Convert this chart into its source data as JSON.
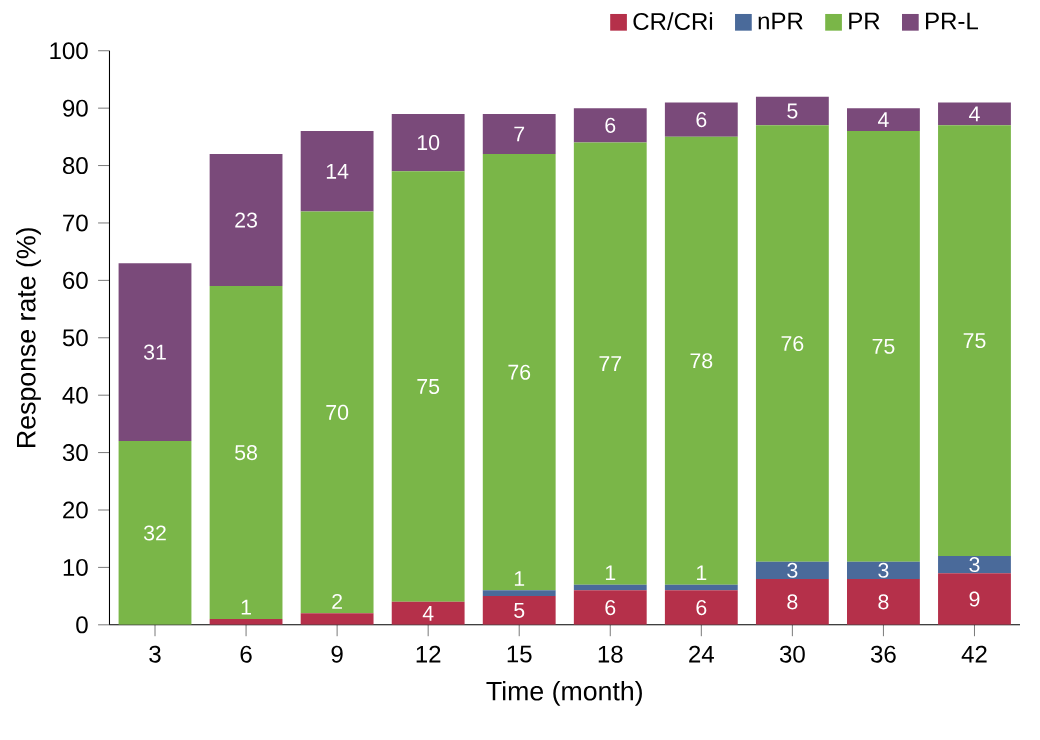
{
  "chart_data": {
    "type": "bar",
    "stacked": true,
    "xlabel": "Time (month)",
    "ylabel": "Response rate (%)",
    "categories": [
      "3",
      "6",
      "9",
      "12",
      "15",
      "18",
      "24",
      "30",
      "36",
      "42"
    ],
    "series": [
      {
        "name": "CR/CRi",
        "color": "#b5304a",
        "values": [
          0,
          1,
          2,
          4,
          5,
          6,
          6,
          8,
          8,
          9
        ],
        "value_labels": [
          null,
          "1",
          "2",
          "4",
          "5",
          "6",
          "6",
          "8",
          "8",
          "9"
        ]
      },
      {
        "name": "nPR",
        "color": "#4a6a9a",
        "values": [
          0,
          0,
          0,
          0,
          1,
          1,
          1,
          3,
          3,
          3
        ],
        "value_labels": [
          null,
          null,
          null,
          null,
          "1",
          "1",
          "1",
          "3",
          "3",
          "3"
        ]
      },
      {
        "name": "PR",
        "color": "#7ab648",
        "values": [
          32,
          58,
          70,
          75,
          76,
          77,
          78,
          76,
          75,
          75
        ],
        "value_labels": [
          "32",
          "58",
          "70",
          "75",
          "76",
          "77",
          "78",
          "76",
          "75",
          "75"
        ]
      },
      {
        "name": "PR-L",
        "color": "#7a4a7a",
        "values": [
          31,
          23,
          14,
          10,
          7,
          6,
          6,
          5,
          4,
          4
        ],
        "value_labels": [
          "31",
          "23",
          "14",
          "10",
          "7",
          "6",
          "6",
          "5",
          "4",
          "4"
        ]
      }
    ],
    "ylim": [
      0,
      100
    ],
    "yticks": [
      0,
      10,
      20,
      30,
      40,
      50,
      60,
      70,
      80,
      90,
      100
    ],
    "legend": "top right",
    "grid": false
  }
}
